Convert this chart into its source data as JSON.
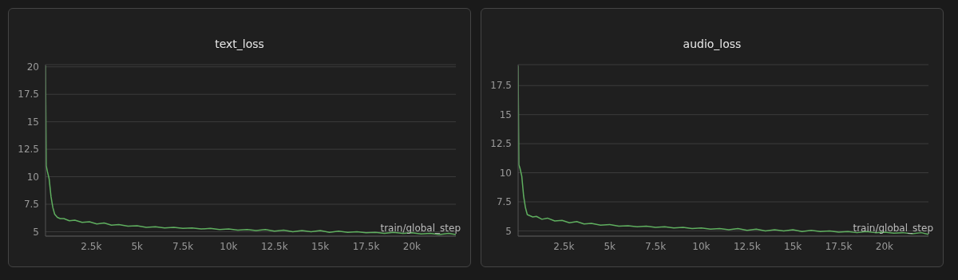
{
  "chart_data": [
    {
      "type": "line",
      "title": "text_loss",
      "xlabel": "train/global_step",
      "xlim": [
        0,
        22400
      ],
      "xticks": [
        {
          "value": 2500,
          "label": "2.5k"
        },
        {
          "value": 5000,
          "label": "5k"
        },
        {
          "value": 7500,
          "label": "7.5k"
        },
        {
          "value": 10000,
          "label": "10k"
        },
        {
          "value": 12500,
          "label": "12.5k"
        },
        {
          "value": 15000,
          "label": "15k"
        },
        {
          "value": 17500,
          "label": "17.5k"
        },
        {
          "value": 20000,
          "label": "20k"
        }
      ],
      "ylim": [
        4.6,
        20.2
      ],
      "yticks": [
        5,
        7.5,
        10,
        12.5,
        15,
        17.5,
        20
      ],
      "grid": "y",
      "legend": false,
      "x": [
        0,
        40,
        100,
        200,
        300,
        400,
        500,
        650,
        800,
        1000,
        1300,
        1600,
        2000,
        2400,
        2800,
        3200,
        3600,
        4000,
        4500,
        5000,
        5500,
        6000,
        6500,
        7000,
        7500,
        8000,
        8500,
        9000,
        9500,
        10000,
        10500,
        11000,
        11500,
        12000,
        12500,
        13000,
        13500,
        14000,
        14500,
        15000,
        15500,
        16000,
        16500,
        17000,
        17500,
        18000,
        18500,
        19000,
        19500,
        20000,
        20500,
        21000,
        21500,
        22000,
        22400
      ],
      "series": [
        {
          "color": "#5fae5f",
          "values": [
            20.1,
            11,
            10.5,
            9.8,
            8.2,
            7.2,
            6.6,
            6.3,
            6.2,
            6.2,
            6.0,
            6.05,
            5.85,
            5.9,
            5.7,
            5.8,
            5.6,
            5.65,
            5.5,
            5.55,
            5.4,
            5.45,
            5.35,
            5.4,
            5.3,
            5.35,
            5.25,
            5.3,
            5.2,
            5.25,
            5.15,
            5.2,
            5.1,
            5.2,
            5.05,
            5.15,
            5.0,
            5.1,
            5.0,
            5.1,
            4.95,
            5.05,
            4.95,
            5.0,
            4.9,
            4.95,
            4.85,
            4.95,
            4.85,
            4.9,
            4.8,
            4.85,
            4.75,
            4.85,
            4.75
          ]
        }
      ]
    },
    {
      "type": "line",
      "title": "audio_loss",
      "xlabel": "train/global_step",
      "xlim": [
        0,
        22400
      ],
      "xticks": [
        {
          "value": 2500,
          "label": "2.5k"
        },
        {
          "value": 5000,
          "label": "5k"
        },
        {
          "value": 7500,
          "label": "7.5k"
        },
        {
          "value": 10000,
          "label": "10k"
        },
        {
          "value": 12500,
          "label": "12.5k"
        },
        {
          "value": 15000,
          "label": "15k"
        },
        {
          "value": 17500,
          "label": "17.5k"
        },
        {
          "value": 20000,
          "label": "20k"
        }
      ],
      "ylim": [
        4.55,
        19.3
      ],
      "yticks": [
        5,
        7.5,
        10,
        12.5,
        15,
        17.5
      ],
      "grid": "y",
      "legend": false,
      "x": [
        0,
        40,
        100,
        200,
        300,
        400,
        500,
        650,
        800,
        1000,
        1300,
        1600,
        2000,
        2400,
        2800,
        3200,
        3600,
        4000,
        4500,
        5000,
        5500,
        6000,
        6500,
        7000,
        7500,
        8000,
        8500,
        9000,
        9500,
        10000,
        10500,
        11000,
        11500,
        12000,
        12500,
        13000,
        13500,
        14000,
        14500,
        15000,
        15500,
        16000,
        16500,
        17000,
        17500,
        18000,
        18500,
        19000,
        19500,
        20000,
        20500,
        21000,
        21500,
        22000,
        22400
      ],
      "series": [
        {
          "color": "#5fae5f",
          "values": [
            19.2,
            10.7,
            10.4,
            9.7,
            8.0,
            7.0,
            6.4,
            6.3,
            6.2,
            6.25,
            6.0,
            6.1,
            5.85,
            5.9,
            5.7,
            5.8,
            5.6,
            5.65,
            5.5,
            5.55,
            5.4,
            5.45,
            5.35,
            5.4,
            5.3,
            5.35,
            5.25,
            5.3,
            5.2,
            5.25,
            5.15,
            5.2,
            5.1,
            5.2,
            5.05,
            5.15,
            5.0,
            5.1,
            5.0,
            5.1,
            4.95,
            5.05,
            4.95,
            5.0,
            4.9,
            4.95,
            4.85,
            4.95,
            4.85,
            4.9,
            4.8,
            4.85,
            4.75,
            4.85,
            4.7
          ]
        }
      ]
    }
  ]
}
